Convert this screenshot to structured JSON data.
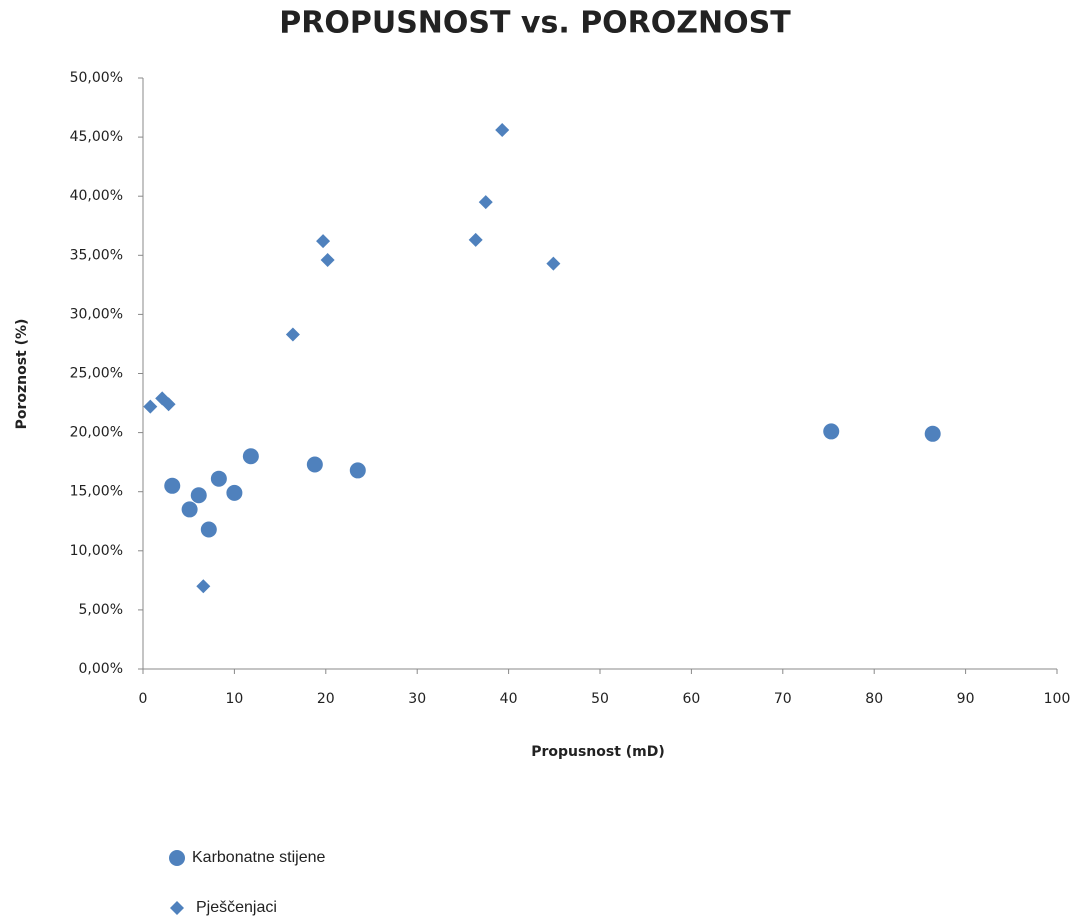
{
  "chart_data": {
    "type": "scatter",
    "title": "PROPUSNOST vs. POROZNOST",
    "x_label": "Propusnost (mD)",
    "y_label": "Poroznost (%)",
    "xlim": [
      0,
      100
    ],
    "xticks": [
      0,
      10,
      20,
      30,
      40,
      50,
      60,
      70,
      80,
      90,
      100
    ],
    "ylim": [
      0,
      50
    ],
    "yticks": [
      {
        "value": 0,
        "label": "0,00%"
      },
      {
        "value": 5,
        "label": "5,00%"
      },
      {
        "value": 10,
        "label": "10,00%"
      },
      {
        "value": 15,
        "label": "15,00%"
      },
      {
        "value": 20,
        "label": "20,00%"
      },
      {
        "value": 25,
        "label": "25,00%"
      },
      {
        "value": 30,
        "label": "30,00%"
      },
      {
        "value": 35,
        "label": "35,00%"
      },
      {
        "value": 40,
        "label": "40,00%"
      },
      {
        "value": 45,
        "label": "45,00%"
      },
      {
        "value": 50,
        "label": "50,00%"
      }
    ],
    "series": [
      {
        "name": "Karbonatne stijene",
        "marker": "circle",
        "color": "#4f81bd",
        "x": [
          3.2,
          6.1,
          5.1,
          7.2,
          8.3,
          10.0,
          11.8,
          18.8,
          23.5,
          75.3,
          86.4
        ],
        "values": [
          15.5,
          14.7,
          13.5,
          11.8,
          16.1,
          14.9,
          18.0,
          17.3,
          16.8,
          20.1,
          19.9
        ]
      },
      {
        "name": "Pješčenjaci",
        "marker": "diamond",
        "color": "#4f81bd",
        "x": [
          0.8,
          2.1,
          2.8,
          6.6,
          16.4,
          19.7,
          20.2,
          36.4,
          37.5,
          39.3,
          44.9
        ],
        "values": [
          22.2,
          22.9,
          22.4,
          7.0,
          28.3,
          36.2,
          34.6,
          36.3,
          39.5,
          45.6,
          34.3
        ]
      }
    ]
  }
}
